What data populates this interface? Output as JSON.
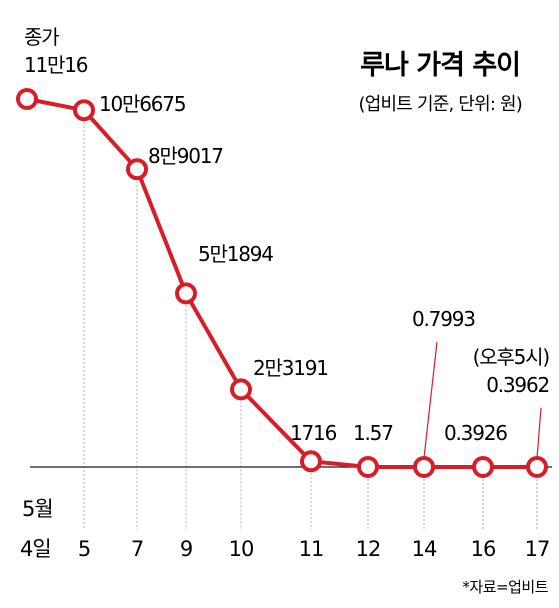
{
  "chart_data": {
    "type": "line",
    "title": "루나 가격 추이",
    "subtitle": "(업비트 기준, 단위: 원)",
    "source": "*자료=업비트",
    "x_prefix": "5월",
    "categories": [
      "4일",
      "5",
      "7",
      "9",
      "10",
      "11",
      "12",
      "14",
      "16",
      "17"
    ],
    "values": [
      110016,
      106675,
      89017,
      51894,
      23191,
      1716,
      1.57,
      0.7993,
      0.3926,
      0.3962
    ],
    "point_labels": [
      [
        "종가",
        "11만16"
      ],
      [
        "10만6675"
      ],
      [
        "8만9017"
      ],
      [
        "5만1894"
      ],
      [
        "2만3191"
      ],
      [
        "1716"
      ],
      [
        "1.57"
      ],
      [
        "0.7993"
      ],
      [
        "0.3926"
      ],
      [
        "(오후5시)",
        "0.3962"
      ]
    ],
    "line_color": "#d71e28",
    "axis_color": "#1a1a1a",
    "ylim": [
      0,
      120000
    ]
  }
}
